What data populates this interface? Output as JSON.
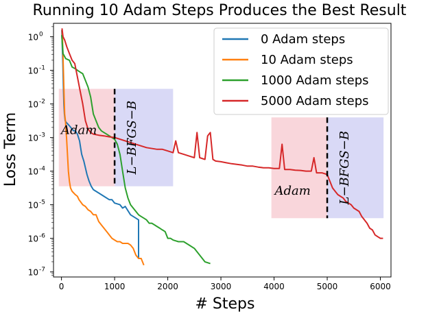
{
  "chart_data": {
    "type": "line",
    "title": "Running 10 Adam Steps Produces the Best Result",
    "xlabel": "# Steps",
    "ylabel": "Loss Term",
    "xlim": [
      -150,
      6200
    ],
    "ylim_log10": [
      -7.15,
      0.4
    ],
    "yscale": "log",
    "x_ticks": [
      0,
      1000,
      2000,
      3000,
      4000,
      5000,
      6000
    ],
    "y_ticks_exp": [
      0,
      -1,
      -2,
      -3,
      -4,
      -5,
      -6,
      -7
    ],
    "legend_position": "top-right",
    "series": [
      {
        "name": "0 Adam steps",
        "color": "#1f77b4",
        "points": [
          [
            5,
            0.2
          ],
          [
            15,
            -0.3
          ],
          [
            25,
            -0.8
          ],
          [
            35,
            -1.4
          ],
          [
            45,
            -2.0
          ],
          [
            55,
            -2.3
          ],
          [
            70,
            -2.5
          ],
          [
            90,
            -2.55
          ],
          [
            120,
            -2.6
          ],
          [
            150,
            -2.65
          ],
          [
            175,
            -2.7
          ],
          [
            200,
            -2.75
          ],
          [
            230,
            -2.8
          ],
          [
            260,
            -2.8
          ],
          [
            280,
            -2.85
          ],
          [
            300,
            -2.9
          ],
          [
            320,
            -3.0
          ],
          [
            340,
            -3.1
          ],
          [
            360,
            -3.3
          ],
          [
            380,
            -3.5
          ],
          [
            400,
            -3.6
          ],
          [
            420,
            -3.7
          ],
          [
            450,
            -3.9
          ],
          [
            480,
            -4.1
          ],
          [
            520,
            -4.3
          ],
          [
            560,
            -4.45
          ],
          [
            600,
            -4.55
          ],
          [
            700,
            -4.65
          ],
          [
            800,
            -4.75
          ],
          [
            900,
            -4.85
          ],
          [
            950,
            -4.85
          ],
          [
            1000,
            -4.95
          ],
          [
            1100,
            -5.0
          ],
          [
            1150,
            -5.1
          ],
          [
            1200,
            -5.05
          ],
          [
            1300,
            -5.3
          ],
          [
            1400,
            -5.4
          ],
          [
            1450,
            -5.45
          ],
          [
            1450,
            -6.6
          ]
        ]
      },
      {
        "name": "10 Adam steps",
        "color": "#ff7f0e",
        "points": [
          [
            10,
            0.2
          ],
          [
            20,
            -0.1
          ],
          [
            30,
            -0.6
          ],
          [
            40,
            -1.2
          ],
          [
            50,
            -1.8
          ],
          [
            60,
            -2.3
          ],
          [
            75,
            -2.5
          ],
          [
            85,
            -2.8
          ],
          [
            95,
            -3.0
          ],
          [
            110,
            -3.4
          ],
          [
            130,
            -4.0
          ],
          [
            150,
            -4.3
          ],
          [
            170,
            -4.5
          ],
          [
            200,
            -4.6
          ],
          [
            260,
            -4.7
          ],
          [
            300,
            -4.75
          ],
          [
            330,
            -4.85
          ],
          [
            400,
            -5.0
          ],
          [
            450,
            -5.05
          ],
          [
            500,
            -5.15
          ],
          [
            550,
            -5.2
          ],
          [
            600,
            -5.3
          ],
          [
            650,
            -5.3
          ],
          [
            700,
            -5.5
          ],
          [
            750,
            -5.6
          ],
          [
            800,
            -5.7
          ],
          [
            850,
            -5.8
          ],
          [
            900,
            -5.9
          ],
          [
            950,
            -6.0
          ],
          [
            1000,
            -6.05
          ],
          [
            1050,
            -6.1
          ],
          [
            1100,
            -6.1
          ],
          [
            1150,
            -6.15
          ],
          [
            1200,
            -6.15
          ],
          [
            1250,
            -6.15
          ],
          [
            1300,
            -6.2
          ],
          [
            1350,
            -6.3
          ],
          [
            1400,
            -6.5
          ],
          [
            1450,
            -6.6
          ],
          [
            1500,
            -6.6
          ],
          [
            1550,
            -6.8
          ]
        ]
      },
      {
        "name": "1000 Adam steps",
        "color": "#2ca02c",
        "points": [
          [
            5,
            0.05
          ],
          [
            30,
            -0.5
          ],
          [
            80,
            -0.65
          ],
          [
            150,
            -0.7
          ],
          [
            200,
            -0.9
          ],
          [
            260,
            -0.95
          ],
          [
            300,
            -1.0
          ],
          [
            350,
            -1.05
          ],
          [
            400,
            -1.1
          ],
          [
            450,
            -1.3
          ],
          [
            500,
            -1.5
          ],
          [
            550,
            -1.8
          ],
          [
            600,
            -2.3
          ],
          [
            650,
            -2.5
          ],
          [
            700,
            -2.7
          ],
          [
            750,
            -2.8
          ],
          [
            800,
            -2.85
          ],
          [
            850,
            -2.9
          ],
          [
            900,
            -2.95
          ],
          [
            950,
            -3.0
          ],
          [
            1000,
            -3.05
          ],
          [
            1050,
            -3.2
          ],
          [
            1100,
            -3.5
          ],
          [
            1150,
            -4.0
          ],
          [
            1200,
            -4.5
          ],
          [
            1250,
            -4.8
          ],
          [
            1300,
            -5.0
          ],
          [
            1350,
            -5.1
          ],
          [
            1400,
            -5.2
          ],
          [
            1450,
            -5.3
          ],
          [
            1500,
            -5.35
          ],
          [
            1550,
            -5.4
          ],
          [
            1600,
            -5.45
          ],
          [
            1650,
            -5.55
          ],
          [
            1700,
            -5.55
          ],
          [
            1750,
            -5.6
          ],
          [
            1800,
            -5.65
          ],
          [
            1850,
            -5.7
          ],
          [
            1900,
            -5.75
          ],
          [
            1950,
            -5.8
          ],
          [
            2000,
            -6.0
          ],
          [
            2050,
            -6.0
          ],
          [
            2100,
            -6.05
          ],
          [
            2200,
            -6.1
          ],
          [
            2300,
            -6.1
          ],
          [
            2400,
            -6.2
          ],
          [
            2500,
            -6.3
          ],
          [
            2600,
            -6.5
          ],
          [
            2700,
            -6.7
          ],
          [
            2800,
            -6.75
          ]
        ]
      },
      {
        "name": "5000 Adam steps",
        "color": "#d62728",
        "points": [
          [
            10,
            0.25
          ],
          [
            30,
            0.0
          ],
          [
            60,
            -0.1
          ],
          [
            100,
            -0.3
          ],
          [
            150,
            -0.5
          ],
          [
            200,
            -0.7
          ],
          [
            250,
            -0.8
          ],
          [
            300,
            -1.2
          ],
          [
            350,
            -1.6
          ],
          [
            400,
            -2.0
          ],
          [
            450,
            -2.5
          ],
          [
            500,
            -2.75
          ],
          [
            550,
            -2.85
          ],
          [
            600,
            -2.9
          ],
          [
            700,
            -2.93
          ],
          [
            800,
            -2.95
          ],
          [
            900,
            -2.98
          ],
          [
            1000,
            -3.0
          ],
          [
            1200,
            -3.1
          ],
          [
            1400,
            -3.2
          ],
          [
            1600,
            -3.3
          ],
          [
            1800,
            -3.35
          ],
          [
            1900,
            -3.35
          ],
          [
            2000,
            -3.4
          ],
          [
            2100,
            -3.45
          ],
          [
            2150,
            -3.1
          ],
          [
            2200,
            -3.45
          ],
          [
            2300,
            -3.5
          ],
          [
            2400,
            -3.55
          ],
          [
            2500,
            -3.6
          ],
          [
            2550,
            -2.85
          ],
          [
            2600,
            -3.6
          ],
          [
            2700,
            -3.65
          ],
          [
            2750,
            -2.95
          ],
          [
            2800,
            -2.85
          ],
          [
            2850,
            -3.65
          ],
          [
            2900,
            -3.7
          ],
          [
            3000,
            -3.72
          ],
          [
            3100,
            -3.75
          ],
          [
            3200,
            -3.78
          ],
          [
            3300,
            -3.8
          ],
          [
            3400,
            -3.82
          ],
          [
            3500,
            -3.85
          ],
          [
            3600,
            -3.85
          ],
          [
            3700,
            -3.88
          ],
          [
            3800,
            -3.9
          ],
          [
            3900,
            -3.9
          ],
          [
            4000,
            -3.92
          ],
          [
            4100,
            -3.92
          ],
          [
            4150,
            -3.2
          ],
          [
            4200,
            -3.95
          ],
          [
            4300,
            -3.95
          ],
          [
            4400,
            -3.97
          ],
          [
            4500,
            -3.98
          ],
          [
            4600,
            -4.0
          ],
          [
            4700,
            -4.0
          ],
          [
            4750,
            -3.6
          ],
          [
            4800,
            -4.05
          ],
          [
            4900,
            -4.05
          ],
          [
            5000,
            -4.1
          ],
          [
            5050,
            -4.3
          ],
          [
            5100,
            -4.5
          ],
          [
            5150,
            -4.6
          ],
          [
            5200,
            -4.7
          ],
          [
            5250,
            -4.75
          ],
          [
            5300,
            -4.8
          ],
          [
            5350,
            -4.9
          ],
          [
            5400,
            -4.95
          ],
          [
            5450,
            -5.0
          ],
          [
            5500,
            -5.1
          ],
          [
            5600,
            -5.2
          ],
          [
            5650,
            -5.35
          ],
          [
            5700,
            -5.45
          ],
          [
            5750,
            -5.55
          ],
          [
            5800,
            -5.7
          ],
          [
            5850,
            -5.75
          ],
          [
            5900,
            -5.9
          ],
          [
            5950,
            -5.95
          ],
          [
            6000,
            -6.0
          ],
          [
            6050,
            -6.0
          ]
        ]
      }
    ],
    "shaded_regions": [
      {
        "x": [
          -50,
          1000
        ],
        "log10y": [
          -4.45,
          -1.55
        ],
        "color": "#f8cfd5",
        "label": "Adam",
        "label_at": [
          330,
          -2.9
        ]
      },
      {
        "x": [
          1000,
          2100
        ],
        "log10y": [
          -4.45,
          -1.55
        ],
        "color": "#d2d2f4",
        "label": "L−BFGS−B",
        "label_at": [
          1400,
          -3.0
        ]
      },
      {
        "x": [
          3950,
          5000
        ],
        "log10y": [
          -5.4,
          -2.4
        ],
        "color": "#f8cfd5",
        "label": "Adam",
        "label_at": [
          4350,
          -4.7
        ]
      },
      {
        "x": [
          5000,
          6060
        ],
        "log10y": [
          -5.4,
          -2.4
        ],
        "color": "#d2d2f4",
        "label": "L−BFGS−B",
        "label_at": [
          5400,
          -3.9
        ]
      }
    ],
    "dashed_lines": [
      {
        "x": 1000,
        "log10y": [
          -4.45,
          -1.55
        ]
      },
      {
        "x": 5000,
        "log10y": [
          -5.4,
          -2.4
        ]
      }
    ]
  }
}
